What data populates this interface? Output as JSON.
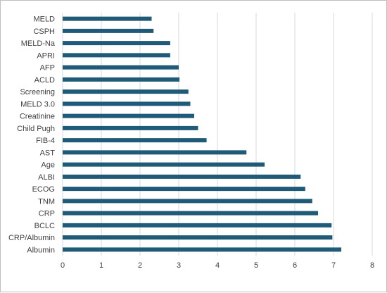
{
  "chart_data": {
    "type": "bar",
    "orientation": "horizontal",
    "title": "",
    "xlabel": "",
    "ylabel": "",
    "xlim": [
      0,
      8
    ],
    "xticks": [
      0,
      1,
      2,
      3,
      4,
      5,
      6,
      7,
      8
    ],
    "grid": "vertical",
    "legend": "none",
    "bar_color": "#1f5b78",
    "categories": [
      "MELD",
      "CSPH",
      "MELD-Na",
      "APRI",
      "AFP",
      "ACLD",
      "Screening",
      "MELD 3.0",
      "Creatinine",
      "Child Pugh",
      "FIB-4",
      "AST",
      "Age",
      "ALBI",
      "ECOG",
      "TNM",
      "CRP",
      "BCLC",
      "CRP/Albumin",
      "Albumin"
    ],
    "values": [
      2.3,
      2.35,
      2.78,
      2.78,
      3.0,
      3.02,
      3.25,
      3.3,
      3.4,
      3.5,
      3.72,
      4.75,
      5.22,
      6.15,
      6.27,
      6.45,
      6.6,
      6.95,
      6.97,
      7.2
    ]
  }
}
